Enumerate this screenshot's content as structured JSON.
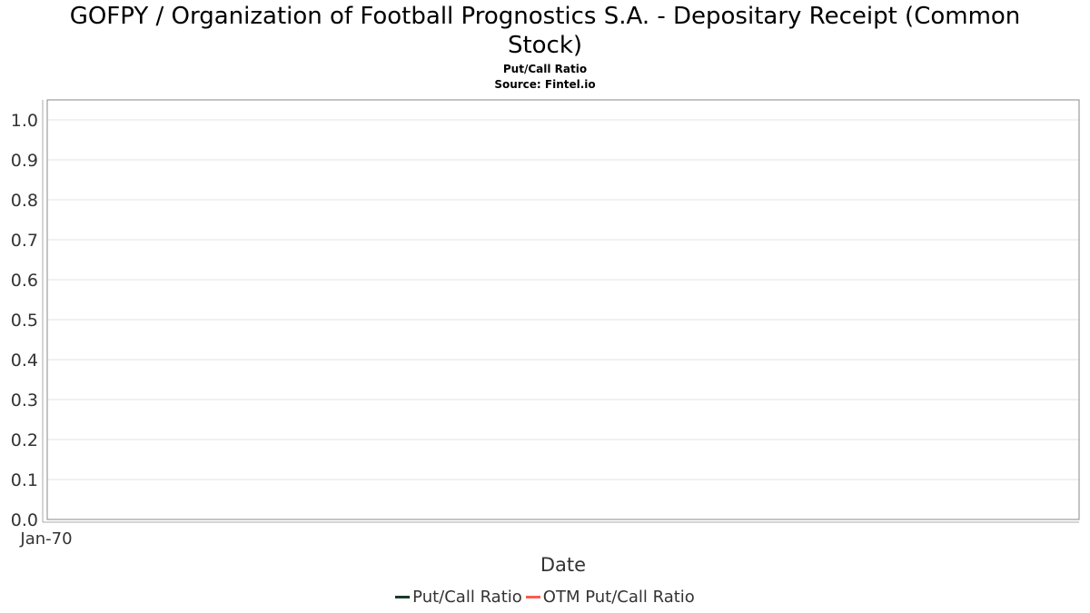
{
  "chart_data": {
    "type": "line",
    "title": "GOFPY / Organization of Football Prognostics S.A. - Depositary Receipt (Common Stock)",
    "title_line1": "GOFPY / Organization of Football Prognostics S.A. - Depositary Receipt (Common",
    "title_line2": "Stock)",
    "subtitle": "Put/Call Ratio",
    "source": "Source: Fintel.io",
    "xlabel": "Date",
    "ylabel": "",
    "ylim": [
      0.0,
      1.0
    ],
    "yticks": [
      "0.0",
      "0.1",
      "0.2",
      "0.3",
      "0.4",
      "0.5",
      "0.6",
      "0.7",
      "0.8",
      "0.9",
      "1.0"
    ],
    "xticks": [
      "Jan-70"
    ],
    "grid": true,
    "legend_position": "bottom",
    "series": [
      {
        "name": "Put/Call Ratio",
        "color": "#1a3a2a",
        "values": []
      },
      {
        "name": "OTM Put/Call Ratio",
        "color": "#ff5a4e",
        "values": []
      }
    ]
  }
}
